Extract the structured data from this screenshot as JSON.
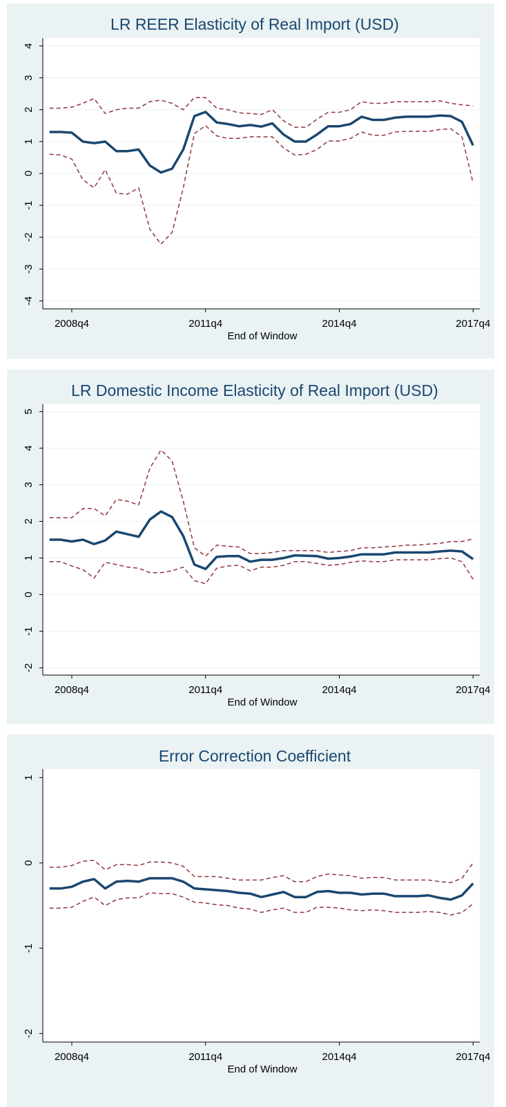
{
  "chart_data": [
    {
      "type": "line",
      "title": "LR REER Elasticity of Real Import (USD)",
      "xlabel": "End of Window",
      "x": [
        193,
        194,
        195,
        196,
        197,
        198,
        199,
        200,
        201,
        202,
        203,
        204,
        205,
        206,
        207,
        208,
        209,
        210,
        211,
        212,
        213,
        214,
        215,
        216,
        217,
        218,
        219,
        220,
        221,
        222,
        223,
        224,
        225,
        226,
        227,
        228,
        229,
        230,
        231
      ],
      "xlim": [
        192.4,
        231.6
      ],
      "xticks": [
        {
          "value": 195,
          "label": "2008q4"
        },
        {
          "value": 207,
          "label": "2011q4"
        },
        {
          "value": 219,
          "label": "2014q4"
        },
        {
          "value": 231,
          "label": "2017q4"
        }
      ],
      "ylim": [
        -4.25,
        4.25
      ],
      "yticks": [
        -4,
        -3,
        -2,
        -1,
        0,
        1,
        2,
        3,
        4
      ],
      "grid": true,
      "series": [
        {
          "color": "#1a476f",
          "line_style": "solid",
          "values": [
            1.3,
            1.3,
            1.28,
            1.0,
            0.95,
            1.0,
            0.7,
            0.7,
            0.75,
            0.25,
            0.03,
            0.15,
            0.75,
            1.8,
            1.93,
            1.6,
            1.55,
            1.48,
            1.52,
            1.47,
            1.57,
            1.22,
            1.0,
            1.0,
            1.22,
            1.48,
            1.48,
            1.55,
            1.78,
            1.68,
            1.68,
            1.75,
            1.78,
            1.78,
            1.78,
            1.82,
            1.8,
            1.62,
            0.88
          ]
        },
        {
          "color": "#90353b",
          "line_style": "dashed",
          "values": [
            2.05,
            2.05,
            2.08,
            2.2,
            2.35,
            1.88,
            2.0,
            2.05,
            2.05,
            2.25,
            2.3,
            2.2,
            2.0,
            2.38,
            2.38,
            2.05,
            2.0,
            1.9,
            1.88,
            1.85,
            2.0,
            1.65,
            1.45,
            1.45,
            1.7,
            1.92,
            1.92,
            2.0,
            2.25,
            2.2,
            2.2,
            2.25,
            2.25,
            2.25,
            2.25,
            2.28,
            2.2,
            2.15,
            2.12
          ]
        },
        {
          "color": "#90353b",
          "line_style": "dashed",
          "values": [
            0.6,
            0.58,
            0.45,
            -0.2,
            -0.45,
            0.12,
            -0.62,
            -0.65,
            -0.45,
            -1.75,
            -2.22,
            -1.85,
            -0.45,
            1.25,
            1.5,
            1.18,
            1.1,
            1.1,
            1.15,
            1.15,
            1.15,
            0.8,
            0.58,
            0.6,
            0.75,
            1.02,
            1.02,
            1.1,
            1.3,
            1.2,
            1.2,
            1.3,
            1.32,
            1.32,
            1.32,
            1.38,
            1.4,
            1.15,
            -0.3
          ]
        }
      ]
    },
    {
      "type": "line",
      "title": "LR Domestic Income Elasticity of Real Import (USD)",
      "xlabel": "End of Window",
      "x": [
        193,
        194,
        195,
        196,
        197,
        198,
        199,
        200,
        201,
        202,
        203,
        204,
        205,
        206,
        207,
        208,
        209,
        210,
        211,
        212,
        213,
        214,
        215,
        216,
        217,
        218,
        219,
        220,
        221,
        222,
        223,
        224,
        225,
        226,
        227,
        228,
        229,
        230,
        231
      ],
      "xlim": [
        192.4,
        231.6
      ],
      "xticks": [
        {
          "value": 195,
          "label": "2008q4"
        },
        {
          "value": 207,
          "label": "2011q4"
        },
        {
          "value": 219,
          "label": "2014q4"
        },
        {
          "value": 231,
          "label": "2017q4"
        }
      ],
      "ylim": [
        -2.2,
        5.2
      ],
      "yticks": [
        -2,
        -1,
        0,
        1,
        2,
        3,
        4,
        5
      ],
      "grid": true,
      "series": [
        {
          "color": "#1a476f",
          "line_style": "solid",
          "values": [
            1.5,
            1.5,
            1.45,
            1.5,
            1.38,
            1.48,
            1.72,
            1.65,
            1.58,
            2.05,
            2.27,
            2.12,
            1.6,
            0.82,
            0.7,
            1.03,
            1.05,
            1.05,
            0.9,
            0.95,
            0.95,
            1.0,
            1.07,
            1.06,
            1.05,
            0.98,
            1.0,
            1.04,
            1.1,
            1.1,
            1.1,
            1.15,
            1.15,
            1.15,
            1.15,
            1.18,
            1.2,
            1.18,
            0.97
          ]
        },
        {
          "color": "#90353b",
          "line_style": "dashed",
          "values": [
            2.1,
            2.1,
            2.1,
            2.35,
            2.35,
            2.15,
            2.6,
            2.55,
            2.45,
            3.45,
            3.95,
            3.65,
            2.55,
            1.28,
            1.05,
            1.35,
            1.32,
            1.3,
            1.12,
            1.12,
            1.15,
            1.2,
            1.2,
            1.2,
            1.2,
            1.15,
            1.18,
            1.2,
            1.28,
            1.28,
            1.3,
            1.32,
            1.35,
            1.35,
            1.38,
            1.4,
            1.45,
            1.45,
            1.52
          ]
        },
        {
          "color": "#90353b",
          "line_style": "dashed",
          "values": [
            0.9,
            0.9,
            0.78,
            0.68,
            0.45,
            0.88,
            0.82,
            0.75,
            0.72,
            0.6,
            0.6,
            0.65,
            0.75,
            0.38,
            0.3,
            0.72,
            0.78,
            0.8,
            0.65,
            0.75,
            0.75,
            0.8,
            0.9,
            0.9,
            0.85,
            0.8,
            0.82,
            0.88,
            0.92,
            0.9,
            0.9,
            0.95,
            0.95,
            0.95,
            0.95,
            0.98,
            1.0,
            0.9,
            0.42
          ]
        }
      ]
    },
    {
      "type": "line",
      "title": "Error Correction Coefficient",
      "xlabel": "End of Window",
      "x": [
        193,
        194,
        195,
        196,
        197,
        198,
        199,
        200,
        201,
        202,
        203,
        204,
        205,
        206,
        207,
        208,
        209,
        210,
        211,
        212,
        213,
        214,
        215,
        216,
        217,
        218,
        219,
        220,
        221,
        222,
        223,
        224,
        225,
        226,
        227,
        228,
        229,
        230,
        231
      ],
      "xlim": [
        192.4,
        231.6
      ],
      "xticks": [
        {
          "value": 195,
          "label": "2008q4"
        },
        {
          "value": 207,
          "label": "2011q4"
        },
        {
          "value": 219,
          "label": "2014q4"
        },
        {
          "value": 231,
          "label": "2017q4"
        }
      ],
      "ylim": [
        -2.1,
        1.1
      ],
      "yticks": [
        -2,
        -1,
        0,
        1
      ],
      "grid": false,
      "series": [
        {
          "color": "#1a476f",
          "line_style": "solid",
          "values": [
            -0.3,
            -0.3,
            -0.28,
            -0.22,
            -0.19,
            -0.3,
            -0.22,
            -0.21,
            -0.22,
            -0.18,
            -0.18,
            -0.18,
            -0.22,
            -0.3,
            -0.31,
            -0.32,
            -0.33,
            -0.35,
            -0.36,
            -0.4,
            -0.37,
            -0.34,
            -0.4,
            -0.4,
            -0.34,
            -0.33,
            -0.35,
            -0.35,
            -0.37,
            -0.36,
            -0.36,
            -0.39,
            -0.39,
            -0.39,
            -0.38,
            -0.41,
            -0.43,
            -0.38,
            -0.24
          ]
        },
        {
          "color": "#90353b",
          "line_style": "dashed",
          "values": [
            -0.05,
            -0.05,
            -0.03,
            0.02,
            0.03,
            -0.08,
            -0.02,
            -0.02,
            -0.03,
            0.01,
            0.01,
            0.0,
            -0.04,
            -0.16,
            -0.16,
            -0.16,
            -0.18,
            -0.2,
            -0.2,
            -0.2,
            -0.17,
            -0.15,
            -0.22,
            -0.22,
            -0.16,
            -0.13,
            -0.14,
            -0.15,
            -0.18,
            -0.17,
            -0.17,
            -0.2,
            -0.2,
            -0.2,
            -0.2,
            -0.22,
            -0.23,
            -0.18,
            0.0
          ]
        },
        {
          "color": "#90353b",
          "line_style": "dashed",
          "values": [
            -0.53,
            -0.53,
            -0.52,
            -0.45,
            -0.4,
            -0.5,
            -0.43,
            -0.41,
            -0.41,
            -0.35,
            -0.36,
            -0.36,
            -0.4,
            -0.46,
            -0.47,
            -0.49,
            -0.5,
            -0.53,
            -0.54,
            -0.58,
            -0.55,
            -0.53,
            -0.58,
            -0.58,
            -0.52,
            -0.52,
            -0.53,
            -0.55,
            -0.56,
            -0.55,
            -0.56,
            -0.58,
            -0.58,
            -0.58,
            -0.57,
            -0.58,
            -0.61,
            -0.58,
            -0.48
          ]
        }
      ]
    }
  ]
}
